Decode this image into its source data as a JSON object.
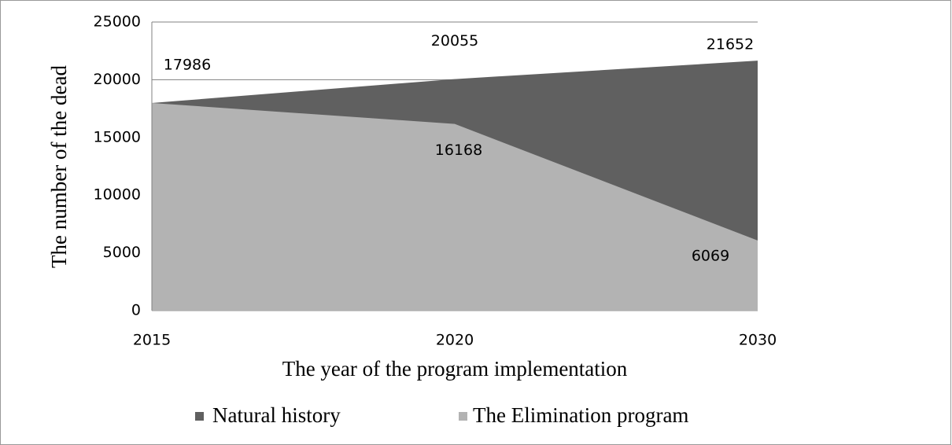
{
  "chart_data": {
    "type": "area",
    "x_label": "The year of the program implementation",
    "y_label": "The number of the dead",
    "categories": [
      "2015",
      "2020",
      "2030"
    ],
    "series": [
      {
        "name": "Natural history",
        "color": "#606060",
        "values": [
          17986,
          20055,
          21652
        ]
      },
      {
        "name": "The Elimination program",
        "color": "#b3b3b3",
        "values": [
          17986,
          16168,
          6069
        ],
        "value_labels": [
          null,
          "16168",
          "6069"
        ]
      }
    ],
    "ylim": [
      0,
      25000
    ],
    "yticks": [
      0,
      5000,
      10000,
      15000,
      20000,
      25000
    ],
    "grid": true,
    "legend": "bottom"
  }
}
